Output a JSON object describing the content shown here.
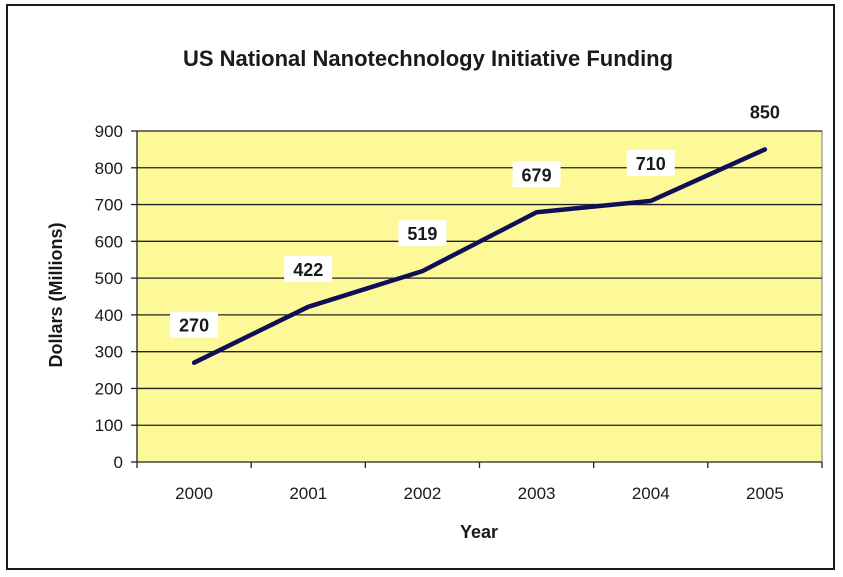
{
  "chart_data": {
    "type": "line",
    "title": "US National Nanotechnology Initiative Funding",
    "xlabel": "Year",
    "ylabel": "Dollars (Millions)",
    "categories": [
      "2000",
      "2001",
      "2002",
      "2003",
      "2004",
      "2005"
    ],
    "series": [
      {
        "values": [
          270,
          422,
          519,
          679,
          710,
          850
        ],
        "data_labels": [
          "270",
          "422",
          "519",
          "679",
          "710",
          "850"
        ],
        "color": "#0f0f55"
      }
    ],
    "ylim": [
      0,
      900
    ],
    "yticks": [
      0,
      100,
      200,
      300,
      400,
      500,
      600,
      700,
      800,
      900
    ],
    "ytick_labels": [
      "0",
      "100",
      "200",
      "300",
      "400",
      "500",
      "600",
      "700",
      "800",
      "900"
    ],
    "grid": true,
    "plot_background": "#fdf898",
    "legend": "none"
  }
}
